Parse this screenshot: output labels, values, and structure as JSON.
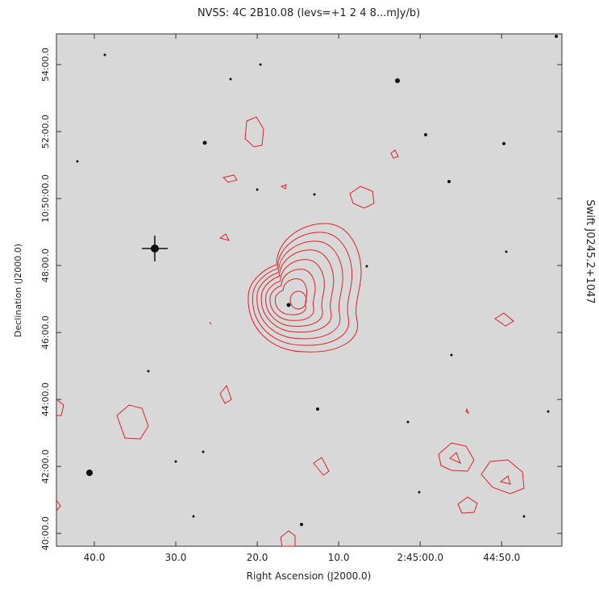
{
  "chart_data": {
    "type": "contour",
    "title": "NVSS:  4C 2B10.08 (levs=+1 2 4 8...mJy/b)",
    "x_label": "Right Ascension (J2000.0)",
    "y_label": "Declination (J2000.0)",
    "side_label": "Swift J0245.2+1047",
    "contour_color": "#e0202a",
    "xlim": [
      9944.65,
      9882.6
    ],
    "ylim": [
      38377,
      39295
    ],
    "xticks": [
      {
        "value": 9940,
        "label": "40.0"
      },
      {
        "value": 9930,
        "label": "30.0"
      },
      {
        "value": 9920,
        "label": "20.0"
      },
      {
        "value": 9910,
        "label": "10.0"
      },
      {
        "value": 9900,
        "label": "2:45:00.0"
      },
      {
        "value": 9890,
        "label": "44:50.0"
      }
    ],
    "yticks": [
      {
        "value": 38400,
        "label": "40:00.0"
      },
      {
        "value": 38520,
        "label": "42:00.0"
      },
      {
        "value": 38640,
        "label": "44:00.0"
      },
      {
        "value": 38760,
        "label": "46:00.0"
      },
      {
        "value": 38880,
        "label": "48:00.0"
      },
      {
        "value": 39000,
        "label": "10:50:00.0"
      },
      {
        "value": 39120,
        "label": "52:00.0"
      },
      {
        "value": 39240,
        "label": "54:00.0"
      }
    ]
  }
}
